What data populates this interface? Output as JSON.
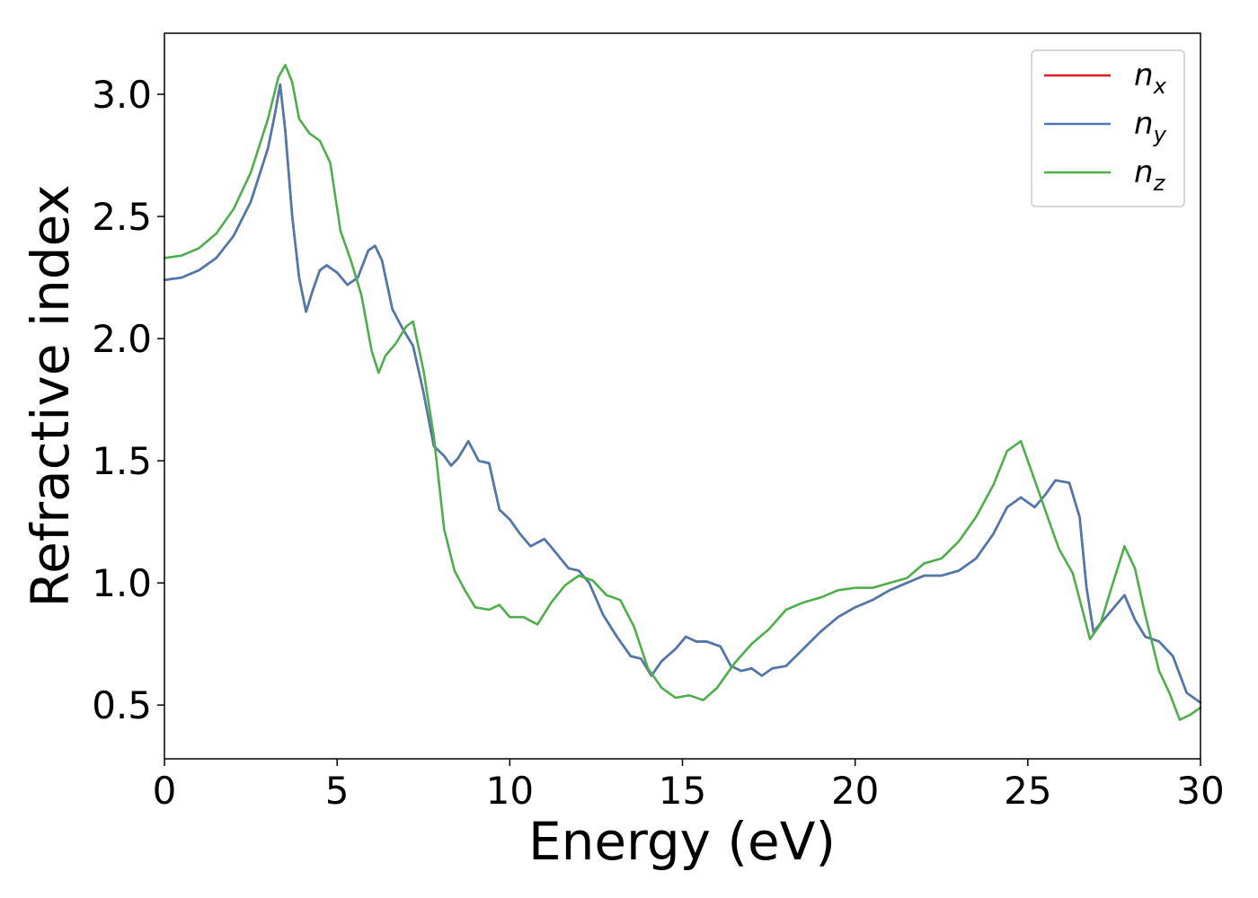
{
  "chart_data": {
    "type": "line",
    "title": "",
    "xlabel": "Energy (eV)",
    "ylabel": "Refractive index",
    "xlim": [
      0,
      30
    ],
    "ylim": [
      0.28,
      3.25
    ],
    "xticks": [
      0,
      5,
      10,
      15,
      20,
      25,
      30
    ],
    "yticks": [
      0.5,
      1.0,
      1.5,
      2.0,
      2.5,
      3.0
    ],
    "xtick_labels": [
      "0",
      "5",
      "10",
      "15",
      "20",
      "25",
      "30"
    ],
    "ytick_labels": [
      "0.5",
      "1.0",
      "1.5",
      "2.0",
      "2.5",
      "3.0"
    ],
    "grid": false,
    "legend_position": "top-right",
    "series": [
      {
        "name": "n_x",
        "label_main": "n",
        "label_sub": "x",
        "color": "#e41a1c",
        "points": [
          [
            0,
            2.24
          ],
          [
            0.5,
            2.25
          ],
          [
            1.0,
            2.28
          ],
          [
            1.5,
            2.33
          ],
          [
            2.0,
            2.42
          ],
          [
            2.5,
            2.56
          ],
          [
            3.0,
            2.78
          ],
          [
            3.2,
            2.92
          ],
          [
            3.35,
            3.04
          ],
          [
            3.5,
            2.85
          ],
          [
            3.7,
            2.5
          ],
          [
            3.9,
            2.25
          ],
          [
            4.1,
            2.11
          ],
          [
            4.3,
            2.2
          ],
          [
            4.5,
            2.28
          ],
          [
            4.7,
            2.3
          ],
          [
            5.0,
            2.27
          ],
          [
            5.3,
            2.22
          ],
          [
            5.6,
            2.25
          ],
          [
            5.9,
            2.36
          ],
          [
            6.1,
            2.38
          ],
          [
            6.3,
            2.32
          ],
          [
            6.6,
            2.12
          ],
          [
            6.9,
            2.04
          ],
          [
            7.2,
            1.97
          ],
          [
            7.5,
            1.78
          ],
          [
            7.8,
            1.56
          ],
          [
            8.1,
            1.52
          ],
          [
            8.3,
            1.48
          ],
          [
            8.5,
            1.51
          ],
          [
            8.8,
            1.58
          ],
          [
            9.1,
            1.5
          ],
          [
            9.4,
            1.49
          ],
          [
            9.7,
            1.3
          ],
          [
            10.0,
            1.26
          ],
          [
            10.3,
            1.2
          ],
          [
            10.6,
            1.15
          ],
          [
            11.0,
            1.18
          ],
          [
            11.3,
            1.13
          ],
          [
            11.7,
            1.06
          ],
          [
            12.0,
            1.05
          ],
          [
            12.3,
            1.0
          ],
          [
            12.7,
            0.87
          ],
          [
            13.1,
            0.78
          ],
          [
            13.5,
            0.7
          ],
          [
            13.8,
            0.69
          ],
          [
            14.1,
            0.62
          ],
          [
            14.4,
            0.68
          ],
          [
            14.8,
            0.73
          ],
          [
            15.1,
            0.78
          ],
          [
            15.4,
            0.76
          ],
          [
            15.7,
            0.76
          ],
          [
            16.1,
            0.74
          ],
          [
            16.4,
            0.66
          ],
          [
            16.7,
            0.64
          ],
          [
            17.0,
            0.65
          ],
          [
            17.3,
            0.62
          ],
          [
            17.6,
            0.65
          ],
          [
            18.0,
            0.66
          ],
          [
            18.5,
            0.73
          ],
          [
            19.0,
            0.8
          ],
          [
            19.5,
            0.86
          ],
          [
            20.0,
            0.9
          ],
          [
            20.5,
            0.93
          ],
          [
            21.0,
            0.97
          ],
          [
            21.5,
            1.0
          ],
          [
            22.0,
            1.03
          ],
          [
            22.5,
            1.03
          ],
          [
            23.0,
            1.05
          ],
          [
            23.5,
            1.1
          ],
          [
            24.0,
            1.2
          ],
          [
            24.4,
            1.31
          ],
          [
            24.8,
            1.35
          ],
          [
            25.2,
            1.31
          ],
          [
            25.5,
            1.36
          ],
          [
            25.8,
            1.42
          ],
          [
            26.2,
            1.41
          ],
          [
            26.5,
            1.27
          ],
          [
            26.7,
            0.98
          ],
          [
            26.9,
            0.8
          ],
          [
            27.2,
            0.85
          ],
          [
            27.5,
            0.9
          ],
          [
            27.8,
            0.95
          ],
          [
            28.1,
            0.85
          ],
          [
            28.4,
            0.78
          ],
          [
            28.8,
            0.76
          ],
          [
            29.2,
            0.7
          ],
          [
            29.6,
            0.55
          ],
          [
            30.0,
            0.51
          ]
        ]
      },
      {
        "name": "n_y",
        "label_main": "n",
        "label_sub": "y",
        "color": "#4a7ab0",
        "points": [
          [
            0,
            2.24
          ],
          [
            0.5,
            2.25
          ],
          [
            1.0,
            2.28
          ],
          [
            1.5,
            2.33
          ],
          [
            2.0,
            2.42
          ],
          [
            2.5,
            2.56
          ],
          [
            3.0,
            2.78
          ],
          [
            3.2,
            2.92
          ],
          [
            3.35,
            3.04
          ],
          [
            3.5,
            2.85
          ],
          [
            3.7,
            2.5
          ],
          [
            3.9,
            2.25
          ],
          [
            4.1,
            2.11
          ],
          [
            4.3,
            2.2
          ],
          [
            4.5,
            2.28
          ],
          [
            4.7,
            2.3
          ],
          [
            5.0,
            2.27
          ],
          [
            5.3,
            2.22
          ],
          [
            5.6,
            2.25
          ],
          [
            5.9,
            2.36
          ],
          [
            6.1,
            2.38
          ],
          [
            6.3,
            2.32
          ],
          [
            6.6,
            2.12
          ],
          [
            6.9,
            2.04
          ],
          [
            7.2,
            1.97
          ],
          [
            7.5,
            1.78
          ],
          [
            7.8,
            1.56
          ],
          [
            8.1,
            1.52
          ],
          [
            8.3,
            1.48
          ],
          [
            8.5,
            1.51
          ],
          [
            8.8,
            1.58
          ],
          [
            9.1,
            1.5
          ],
          [
            9.4,
            1.49
          ],
          [
            9.7,
            1.3
          ],
          [
            10.0,
            1.26
          ],
          [
            10.3,
            1.2
          ],
          [
            10.6,
            1.15
          ],
          [
            11.0,
            1.18
          ],
          [
            11.3,
            1.13
          ],
          [
            11.7,
            1.06
          ],
          [
            12.0,
            1.05
          ],
          [
            12.3,
            1.0
          ],
          [
            12.7,
            0.87
          ],
          [
            13.1,
            0.78
          ],
          [
            13.5,
            0.7
          ],
          [
            13.8,
            0.69
          ],
          [
            14.1,
            0.62
          ],
          [
            14.4,
            0.68
          ],
          [
            14.8,
            0.73
          ],
          [
            15.1,
            0.78
          ],
          [
            15.4,
            0.76
          ],
          [
            15.7,
            0.76
          ],
          [
            16.1,
            0.74
          ],
          [
            16.4,
            0.66
          ],
          [
            16.7,
            0.64
          ],
          [
            17.0,
            0.65
          ],
          [
            17.3,
            0.62
          ],
          [
            17.6,
            0.65
          ],
          [
            18.0,
            0.66
          ],
          [
            18.5,
            0.73
          ],
          [
            19.0,
            0.8
          ],
          [
            19.5,
            0.86
          ],
          [
            20.0,
            0.9
          ],
          [
            20.5,
            0.93
          ],
          [
            21.0,
            0.97
          ],
          [
            21.5,
            1.0
          ],
          [
            22.0,
            1.03
          ],
          [
            22.5,
            1.03
          ],
          [
            23.0,
            1.05
          ],
          [
            23.5,
            1.1
          ],
          [
            24.0,
            1.2
          ],
          [
            24.4,
            1.31
          ],
          [
            24.8,
            1.35
          ],
          [
            25.2,
            1.31
          ],
          [
            25.5,
            1.36
          ],
          [
            25.8,
            1.42
          ],
          [
            26.2,
            1.41
          ],
          [
            26.5,
            1.27
          ],
          [
            26.7,
            0.98
          ],
          [
            26.9,
            0.8
          ],
          [
            27.2,
            0.85
          ],
          [
            27.5,
            0.9
          ],
          [
            27.8,
            0.95
          ],
          [
            28.1,
            0.85
          ],
          [
            28.4,
            0.78
          ],
          [
            28.8,
            0.76
          ],
          [
            29.2,
            0.7
          ],
          [
            29.6,
            0.55
          ],
          [
            30.0,
            0.51
          ]
        ]
      },
      {
        "name": "n_z",
        "label_main": "n",
        "label_sub": "z",
        "color": "#4daf4a",
        "points": [
          [
            0,
            2.33
          ],
          [
            0.5,
            2.34
          ],
          [
            1.0,
            2.37
          ],
          [
            1.5,
            2.43
          ],
          [
            2.0,
            2.53
          ],
          [
            2.5,
            2.68
          ],
          [
            3.0,
            2.9
          ],
          [
            3.3,
            3.07
          ],
          [
            3.5,
            3.12
          ],
          [
            3.7,
            3.05
          ],
          [
            3.9,
            2.9
          ],
          [
            4.2,
            2.84
          ],
          [
            4.5,
            2.81
          ],
          [
            4.8,
            2.72
          ],
          [
            5.1,
            2.44
          ],
          [
            5.4,
            2.32
          ],
          [
            5.7,
            2.18
          ],
          [
            6.0,
            1.95
          ],
          [
            6.2,
            1.86
          ],
          [
            6.4,
            1.93
          ],
          [
            6.7,
            1.98
          ],
          [
            7.0,
            2.05
          ],
          [
            7.2,
            2.07
          ],
          [
            7.5,
            1.87
          ],
          [
            7.8,
            1.6
          ],
          [
            8.1,
            1.22
          ],
          [
            8.4,
            1.05
          ],
          [
            8.7,
            0.97
          ],
          [
            9.0,
            0.9
          ],
          [
            9.4,
            0.89
          ],
          [
            9.7,
            0.91
          ],
          [
            10.0,
            0.86
          ],
          [
            10.4,
            0.86
          ],
          [
            10.8,
            0.83
          ],
          [
            11.2,
            0.92
          ],
          [
            11.6,
            0.99
          ],
          [
            12.0,
            1.03
          ],
          [
            12.4,
            1.01
          ],
          [
            12.8,
            0.95
          ],
          [
            13.2,
            0.93
          ],
          [
            13.6,
            0.82
          ],
          [
            14.0,
            0.65
          ],
          [
            14.4,
            0.57
          ],
          [
            14.8,
            0.53
          ],
          [
            15.2,
            0.54
          ],
          [
            15.6,
            0.52
          ],
          [
            16.0,
            0.57
          ],
          [
            16.5,
            0.67
          ],
          [
            17.0,
            0.75
          ],
          [
            17.5,
            0.81
          ],
          [
            18.0,
            0.89
          ],
          [
            18.5,
            0.92
          ],
          [
            19.0,
            0.94
          ],
          [
            19.5,
            0.97
          ],
          [
            20.0,
            0.98
          ],
          [
            20.5,
            0.98
          ],
          [
            21.0,
            1.0
          ],
          [
            21.5,
            1.02
          ],
          [
            22.0,
            1.08
          ],
          [
            22.5,
            1.1
          ],
          [
            23.0,
            1.17
          ],
          [
            23.5,
            1.27
          ],
          [
            24.0,
            1.4
          ],
          [
            24.4,
            1.54
          ],
          [
            24.8,
            1.58
          ],
          [
            25.1,
            1.46
          ],
          [
            25.5,
            1.3
          ],
          [
            25.9,
            1.14
          ],
          [
            26.3,
            1.04
          ],
          [
            26.6,
            0.88
          ],
          [
            26.8,
            0.77
          ],
          [
            27.1,
            0.83
          ],
          [
            27.4,
            0.97
          ],
          [
            27.8,
            1.15
          ],
          [
            28.1,
            1.06
          ],
          [
            28.4,
            0.87
          ],
          [
            28.8,
            0.64
          ],
          [
            29.1,
            0.55
          ],
          [
            29.4,
            0.44
          ],
          [
            29.7,
            0.46
          ],
          [
            30.0,
            0.49
          ]
        ]
      }
    ]
  }
}
